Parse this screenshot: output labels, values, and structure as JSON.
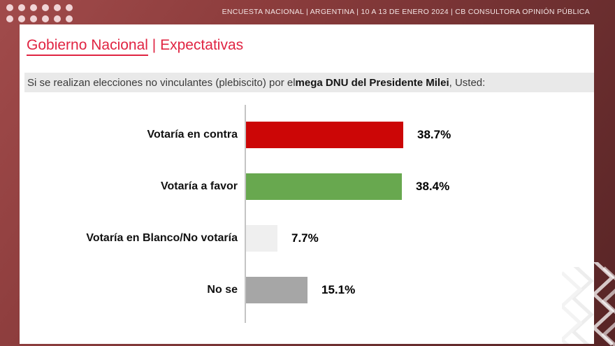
{
  "topbar": {
    "text": "ENCUESTA NACIONAL  |  ARGENTINA  | 10 A 13 DE ENERO 2024 | CB CONSULTORA OPINIÓN PÚBLICA"
  },
  "title": {
    "primary": "Gobierno Nacional",
    "separator": " | ",
    "secondary": "Expectativas"
  },
  "question": {
    "prefix": "Si se realizan elecciones no vinculantes (plebiscito) por el ",
    "bold": "mega DNU del Presidente Milei",
    "suffix": ", Usted:"
  },
  "chart_data": {
    "type": "bar",
    "orientation": "horizontal",
    "title": "",
    "xlabel": "",
    "ylabel": "",
    "categories": [
      "Votaría en contra",
      "Votaría a favor",
      "Votaría en Blanco/No votaría",
      "No se"
    ],
    "values": [
      38.7,
      38.4,
      7.7,
      15.1
    ],
    "value_labels": [
      "38.7%",
      "38.4%",
      "7.7%",
      "15.1%"
    ],
    "bar_colors": [
      "#cc0606",
      "#68a84f",
      "#efefef",
      "#a6a6a6"
    ],
    "xlim": [
      0,
      45
    ],
    "grid": false,
    "legend": false,
    "value_label_position": "right-of-bar"
  },
  "colors": {
    "frame_gradient_light": "#a14b4b",
    "frame_gradient_dark": "#572425",
    "accent_title_red": "#e02442",
    "question_background": "#e9e9e9",
    "axis_line": "#c4c4c4"
  }
}
